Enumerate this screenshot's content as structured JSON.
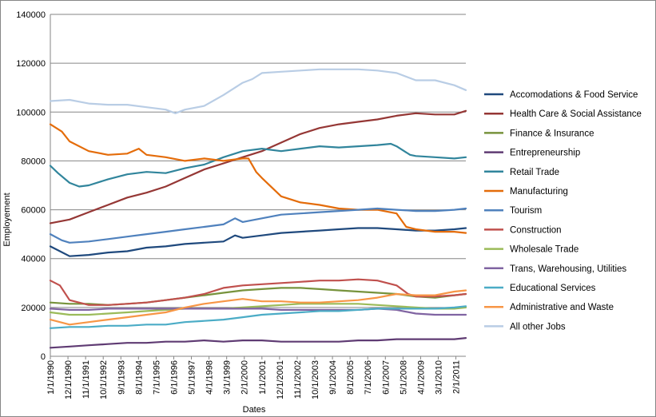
{
  "chart_data": {
    "type": "line",
    "title": "",
    "xlabel": "Dates",
    "ylabel": "Employement",
    "ylim": [
      0,
      140000
    ],
    "yticks": [
      0,
      20000,
      40000,
      60000,
      80000,
      100000,
      120000,
      140000
    ],
    "ytick_labels": [
      "0",
      "20000",
      "40000",
      "60000",
      "80000",
      "100000",
      "120000",
      "140000"
    ],
    "x_tick_labels": [
      "1/1/1990",
      "12/1/1990",
      "11/1/1991",
      "10/1/1992",
      "9/1/1993",
      "8/1/1994",
      "7/1/1995",
      "6/1/1996",
      "5/1/1997",
      "4/1/1998",
      "3/1/1999",
      "2/1/2000",
      "1/1/2001",
      "12/1/2001",
      "11/1/2002",
      "10/1/2003",
      "9/1/2004",
      "8/1/2005",
      "7/1/2006",
      "6/1/2007",
      "5/1/2008",
      "4/1/2009",
      "3/1/2010",
      "2/1/2011"
    ],
    "x_start_year": 1990.0,
    "x_end_year": 2011.6,
    "gridlines": true,
    "legend_position": "right",
    "series": [
      {
        "name": "Accomodations & Food Service",
        "color": "#1f497d",
        "x": [
          1990,
          1990.5,
          1991,
          1992,
          1993,
          1994,
          1995,
          1996,
          1997,
          1998,
          1999,
          1999.6,
          2000,
          2001,
          2002,
          2003,
          2004,
          2005,
          2006,
          2007,
          2008,
          2009,
          2010,
          2011,
          2011.6
        ],
        "values": [
          45000,
          43000,
          41000,
          41500,
          42500,
          43000,
          44500,
          45000,
          46000,
          46500,
          47000,
          49500,
          48500,
          49500,
          50500,
          51000,
          51500,
          52000,
          52500,
          52500,
          52000,
          51500,
          51500,
          52000,
          52500
        ]
      },
      {
        "name": "Health Care & Social Assistance",
        "color": "#953735",
        "x": [
          1990,
          1991,
          1992,
          1993,
          1994,
          1995,
          1996,
          1997,
          1998,
          1999,
          2000,
          2001,
          2002,
          2003,
          2004,
          2005,
          2006,
          2007,
          2008,
          2009,
          2010,
          2011,
          2011.6
        ],
        "values": [
          54500,
          56000,
          59000,
          62000,
          65000,
          67000,
          69500,
          73000,
          76500,
          79000,
          81500,
          84000,
          87500,
          91000,
          93500,
          95000,
          96000,
          97000,
          98500,
          99500,
          99000,
          99000,
          100500
        ]
      },
      {
        "name": "Finance & Insurance",
        "color": "#77933c",
        "x": [
          1990,
          1991,
          1992,
          1993,
          1994,
          1995,
          1996,
          1997,
          1998,
          1999,
          2000,
          2001,
          2002,
          2003,
          2004,
          2005,
          2006,
          2007,
          2008,
          2009,
          2010,
          2011,
          2011.6
        ],
        "values": [
          22000,
          21500,
          21500,
          21000,
          21500,
          22000,
          23000,
          24000,
          25000,
          26000,
          27000,
          27500,
          28000,
          28000,
          27500,
          27000,
          26500,
          26000,
          25500,
          24500,
          24000,
          25000,
          25500
        ]
      },
      {
        "name": "Entrepreneurship",
        "color": "#5f3b73",
        "x": [
          1990,
          1991,
          1992,
          1993,
          1994,
          1995,
          1996,
          1997,
          1998,
          1999,
          2000,
          2001,
          2002,
          2003,
          2004,
          2005,
          2006,
          2007,
          2008,
          2009,
          2010,
          2011,
          2011.6
        ],
        "values": [
          3500,
          4000,
          4500,
          5000,
          5500,
          5500,
          6000,
          6000,
          6500,
          6000,
          6500,
          6500,
          6000,
          6000,
          6000,
          6000,
          6500,
          6500,
          7000,
          7000,
          7000,
          7000,
          7500
        ]
      },
      {
        "name": "Retail Trade",
        "color": "#31859c",
        "x": [
          1990,
          1990.4,
          1991,
          1991.5,
          1992,
          1993,
          1994,
          1995,
          1996,
          1997,
          1998,
          1999,
          2000,
          2001,
          2002,
          2003,
          2004,
          2005,
          2006,
          2007,
          2007.7,
          2008,
          2008.7,
          2009,
          2010,
          2011,
          2011.6
        ],
        "values": [
          78000,
          75000,
          71000,
          69500,
          70000,
          72500,
          74500,
          75500,
          75000,
          77000,
          78500,
          81500,
          84000,
          85000,
          84000,
          85000,
          86000,
          85500,
          86000,
          86500,
          87000,
          86000,
          82500,
          82000,
          81500,
          81000,
          81500
        ]
      },
      {
        "name": "Manufacturing",
        "color": "#e46c0a",
        "x": [
          1990,
          1990.6,
          1991,
          1992,
          1993,
          1994,
          1994.6,
          1995,
          1996,
          1997,
          1998,
          1999,
          2000,
          2000.3,
          2000.7,
          2001,
          2002,
          2003,
          2004,
          2005,
          2006,
          2007,
          2008,
          2008.5,
          2009,
          2010,
          2011,
          2011.6
        ],
        "values": [
          95000,
          92000,
          88000,
          84000,
          82500,
          83000,
          85000,
          82500,
          81500,
          80000,
          81000,
          80000,
          81000,
          81000,
          75500,
          73000,
          65500,
          63000,
          62000,
          60500,
          60000,
          60000,
          58500,
          53000,
          52000,
          51000,
          51000,
          50500
        ]
      },
      {
        "name": "Tourism",
        "color": "#4f81bd",
        "x": [
          1990,
          1990.6,
          1991,
          1992,
          1993,
          1994,
          1995,
          1996,
          1997,
          1998,
          1999,
          1999.6,
          2000,
          2001,
          2002,
          2003,
          2004,
          2005,
          2006,
          2007,
          2008,
          2009,
          2010,
          2011,
          2011.6
        ],
        "values": [
          50000,
          47500,
          46500,
          47000,
          48000,
          49000,
          50000,
          51000,
          52000,
          53000,
          54000,
          56500,
          55000,
          56500,
          58000,
          58500,
          59000,
          59500,
          60000,
          60500,
          60000,
          59500,
          59500,
          60000,
          60500
        ]
      },
      {
        "name": "Construction",
        "color": "#c0504d",
        "x": [
          1990,
          1990.5,
          1991,
          1992,
          1993,
          1994,
          1995,
          1996,
          1997,
          1998,
          1999,
          2000,
          2001,
          2002,
          2003,
          2004,
          2005,
          2006,
          2007,
          2008,
          2008.6,
          2009,
          2010,
          2011,
          2011.6
        ],
        "values": [
          31000,
          29000,
          23000,
          21000,
          21000,
          21500,
          22000,
          23000,
          24000,
          25500,
          28000,
          29000,
          29500,
          30000,
          30500,
          31000,
          31000,
          31500,
          31000,
          29000,
          25500,
          24500,
          24500,
          25000,
          25500
        ]
      },
      {
        "name": "Wholesale Trade",
        "color": "#9bbb59",
        "x": [
          1990,
          1991,
          1992,
          1993,
          1994,
          1995,
          1996,
          1997,
          1998,
          1999,
          2000,
          2001,
          2002,
          2003,
          2004,
          2005,
          2006,
          2007,
          2008,
          2009,
          2010,
          2011,
          2011.6
        ],
        "values": [
          18000,
          17000,
          17000,
          17500,
          18000,
          18500,
          19000,
          19500,
          19500,
          19500,
          20000,
          20500,
          21000,
          21500,
          21500,
          21500,
          21500,
          21000,
          20500,
          20000,
          19500,
          19500,
          20000
        ]
      },
      {
        "name": "Trans, Warehousing, Utilities",
        "color": "#8064a2",
        "x": [
          1990,
          1991,
          1992,
          1993,
          1994,
          1995,
          1996,
          1997,
          1998,
          1999,
          2000,
          2001,
          2002,
          2003,
          2004,
          2005,
          2006,
          2007,
          2008,
          2009,
          2010,
          2011,
          2011.6
        ],
        "values": [
          19500,
          19000,
          19000,
          19500,
          19500,
          19500,
          19500,
          19500,
          19500,
          19500,
          19500,
          19500,
          19000,
          19000,
          19000,
          19000,
          19000,
          19500,
          19000,
          17500,
          17000,
          17000,
          17000
        ]
      },
      {
        "name": "Educational Services",
        "color": "#4bacc6",
        "x": [
          1990,
          1991,
          1992,
          1993,
          1994,
          1995,
          1996,
          1997,
          1998,
          1999,
          2000,
          2001,
          2002,
          2003,
          2004,
          2005,
          2006,
          2007,
          2008,
          2009,
          2010,
          2011,
          2011.6
        ],
        "values": [
          11500,
          12000,
          12000,
          12500,
          12500,
          13000,
          13000,
          14000,
          14500,
          15000,
          16000,
          17000,
          17500,
          18000,
          18500,
          18500,
          19000,
          19500,
          19500,
          19500,
          19500,
          20000,
          20500
        ]
      },
      {
        "name": "Administrative and Waste",
        "color": "#f79646",
        "x": [
          1990,
          1991,
          1992,
          1993,
          1994,
          1995,
          1996,
          1997,
          1998,
          1999,
          2000,
          2001,
          2002,
          2003,
          2004,
          2005,
          2006,
          2007,
          2008,
          2009,
          2010,
          2011,
          2011.6
        ],
        "values": [
          15000,
          13000,
          14000,
          15000,
          16000,
          17000,
          18000,
          20000,
          21500,
          22500,
          23500,
          22500,
          22500,
          22000,
          22000,
          22500,
          23000,
          24000,
          25500,
          25000,
          25000,
          26500,
          27000
        ]
      },
      {
        "name": "All other Jobs",
        "color": "#b9cde5",
        "x": [
          1990,
          1991,
          1992,
          1993,
          1994,
          1995,
          1996,
          1996.5,
          1997,
          1998,
          1999,
          2000,
          2000.5,
          2001,
          2002,
          2003,
          2004,
          2005,
          2006,
          2007,
          2008,
          2009,
          2010,
          2011,
          2011.6
        ],
        "values": [
          104500,
          105000,
          103500,
          103000,
          103000,
          102000,
          101000,
          99500,
          101000,
          102500,
          107000,
          112000,
          113500,
          116000,
          116500,
          117000,
          117500,
          117500,
          117500,
          117000,
          116000,
          113000,
          113000,
          111000,
          109000
        ]
      }
    ]
  }
}
